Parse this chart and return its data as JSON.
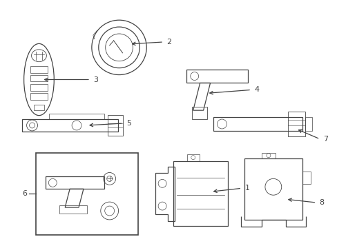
{
  "bg_color": "#ffffff",
  "line_color": "#444444",
  "lw": 0.9,
  "fig_w": 4.89,
  "fig_h": 3.6,
  "dpi": 100
}
